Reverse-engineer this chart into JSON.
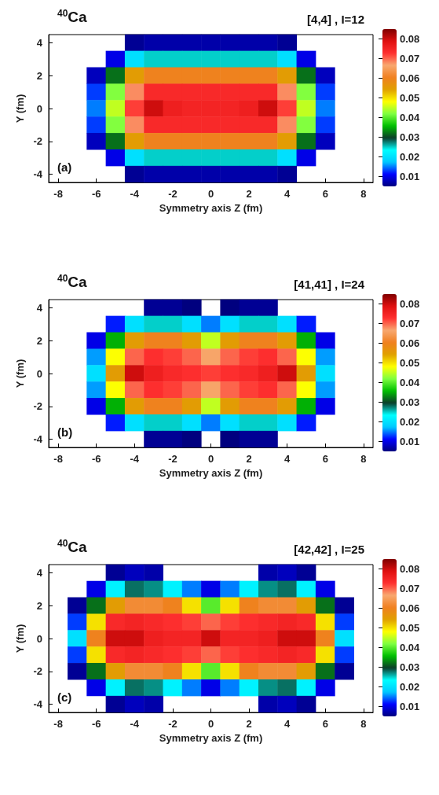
{
  "chart_data": [
    {
      "type": "heatmap",
      "title": "$^{40}$Ca",
      "subtitle": "[4,4] , I=12",
      "xlabel": "Symmetry axis Z (fm)",
      "ylabel": "Y (fm)",
      "annotations": [
        "(a)"
      ],
      "clim": [
        0.005,
        0.085
      ],
      "cticks": [
        0.01,
        0.02,
        0.03,
        0.04,
        0.05,
        0.06,
        0.07,
        0.08
      ],
      "grid": false,
      "categories": [
        "-8",
        null,
        "-6",
        null,
        "-4",
        null,
        "-2",
        null,
        "0",
        null,
        "2",
        null,
        "4",
        null,
        "6",
        null,
        "8"
      ],
      "y_categories": [
        "4",
        null,
        "2",
        null,
        "0",
        null,
        "-2",
        null,
        "-4"
      ],
      "cells": [
        [
          null,
          null,
          null,
          null,
          0.006,
          0.007,
          0.007,
          0.007,
          0.007,
          0.007,
          0.007,
          0.007,
          0.006,
          null,
          null,
          null,
          null
        ],
        [
          null,
          null,
          null,
          0.01,
          0.02,
          0.025,
          0.025,
          0.025,
          0.025,
          0.025,
          0.025,
          0.025,
          0.02,
          0.01,
          null,
          null,
          null
        ],
        [
          null,
          null,
          0.008,
          0.032,
          0.055,
          0.06,
          0.06,
          0.06,
          0.06,
          0.06,
          0.06,
          0.06,
          0.055,
          0.032,
          0.008,
          null,
          null
        ],
        [
          null,
          null,
          0.013,
          0.042,
          0.068,
          0.074,
          0.074,
          0.074,
          0.074,
          0.074,
          0.074,
          0.074,
          0.068,
          0.042,
          0.013,
          null,
          null
        ],
        [
          null,
          null,
          0.015,
          0.045,
          0.072,
          0.08,
          0.076,
          0.075,
          0.075,
          0.075,
          0.076,
          0.08,
          0.072,
          0.045,
          0.015,
          null,
          null
        ],
        [
          null,
          null,
          0.013,
          0.042,
          0.068,
          0.074,
          0.074,
          0.074,
          0.074,
          0.074,
          0.074,
          0.074,
          0.068,
          0.042,
          0.013,
          null,
          null
        ],
        [
          null,
          null,
          0.008,
          0.032,
          0.055,
          0.06,
          0.06,
          0.06,
          0.06,
          0.06,
          0.06,
          0.06,
          0.055,
          0.032,
          0.008,
          null,
          null
        ],
        [
          null,
          null,
          null,
          0.01,
          0.02,
          0.025,
          0.025,
          0.025,
          0.025,
          0.025,
          0.025,
          0.025,
          0.02,
          0.01,
          null,
          null,
          null
        ],
        [
          null,
          null,
          null,
          null,
          0.006,
          0.007,
          0.007,
          0.007,
          0.007,
          0.007,
          0.007,
          0.007,
          0.006,
          null,
          null,
          null,
          null
        ]
      ]
    },
    {
      "type": "heatmap",
      "title": "$^{40}$Ca",
      "subtitle": "[41,41] , I=24",
      "xlabel": "Symmetry axis Z (fm)",
      "ylabel": "Y (fm)",
      "annotations": [
        "(b)"
      ],
      "clim": [
        0.005,
        0.085
      ],
      "cticks": [
        0.01,
        0.02,
        0.03,
        0.04,
        0.05,
        0.06,
        0.07,
        0.08
      ],
      "grid": false,
      "categories": [
        "-8",
        null,
        "-6",
        null,
        "-4",
        null,
        "-2",
        null,
        "0",
        null,
        "2",
        null,
        "4",
        null,
        "6",
        null,
        "8"
      ],
      "y_categories": [
        "4",
        null,
        "2",
        null,
        "0",
        null,
        "-2",
        null,
        "-4"
      ],
      "cells": [
        [
          null,
          null,
          null,
          null,
          null,
          0.006,
          0.006,
          0.005,
          null,
          0.005,
          0.006,
          0.006,
          null,
          null,
          null,
          null,
          null
        ],
        [
          null,
          null,
          null,
          0.012,
          0.02,
          0.025,
          0.025,
          0.02,
          0.015,
          0.02,
          0.025,
          0.025,
          0.02,
          0.012,
          null,
          null,
          null
        ],
        [
          null,
          null,
          0.01,
          0.035,
          0.055,
          0.06,
          0.06,
          0.055,
          0.045,
          0.055,
          0.06,
          0.06,
          0.055,
          0.035,
          0.01,
          null,
          null
        ],
        [
          null,
          null,
          0.016,
          0.048,
          0.07,
          0.073,
          0.072,
          0.07,
          0.066,
          0.07,
          0.072,
          0.073,
          0.07,
          0.048,
          0.016,
          null,
          null
        ],
        [
          null,
          null,
          0.02,
          0.055,
          0.08,
          0.076,
          0.074,
          0.073,
          0.072,
          0.073,
          0.074,
          0.076,
          0.08,
          0.055,
          0.02,
          null,
          null
        ],
        [
          null,
          null,
          0.016,
          0.048,
          0.07,
          0.073,
          0.072,
          0.07,
          0.066,
          0.07,
          0.072,
          0.073,
          0.07,
          0.048,
          0.016,
          null,
          null
        ],
        [
          null,
          null,
          0.01,
          0.035,
          0.055,
          0.06,
          0.06,
          0.055,
          0.045,
          0.055,
          0.06,
          0.06,
          0.055,
          0.035,
          0.01,
          null,
          null
        ],
        [
          null,
          null,
          null,
          0.012,
          0.02,
          0.025,
          0.025,
          0.02,
          0.015,
          0.02,
          0.025,
          0.025,
          0.02,
          0.012,
          null,
          null,
          null
        ],
        [
          null,
          null,
          null,
          null,
          null,
          0.006,
          0.006,
          0.005,
          null,
          0.005,
          0.006,
          0.006,
          null,
          null,
          null,
          null,
          null
        ]
      ]
    },
    {
      "type": "heatmap",
      "title": "$^{40}$Ca",
      "subtitle": "[42,42] , I=25",
      "xlabel": "Symmetry axis Z (fm)",
      "ylabel": "Y (fm)",
      "annotations": [
        "(c)"
      ],
      "clim": [
        0.005,
        0.085
      ],
      "cticks": [
        0.01,
        0.02,
        0.03,
        0.04,
        0.05,
        0.06,
        0.07,
        0.08
      ],
      "grid": false,
      "categories": [
        "-8",
        null,
        "-6",
        null,
        "-4",
        null,
        "-2",
        null,
        "0",
        null,
        "2",
        null,
        "4",
        null,
        "6",
        null,
        "8"
      ],
      "y_categories": [
        "4",
        null,
        "2",
        null,
        "0",
        null,
        "-2",
        null,
        "-4"
      ],
      "cells": [
        [
          null,
          null,
          null,
          0.006,
          0.008,
          0.007,
          null,
          null,
          null,
          null,
          null,
          0.007,
          0.008,
          0.006,
          null,
          null,
          null
        ],
        [
          null,
          null,
          0.01,
          0.022,
          0.028,
          0.027,
          0.022,
          0.015,
          0.01,
          0.015,
          0.022,
          0.027,
          0.028,
          0.022,
          0.01,
          null,
          null
        ],
        [
          null,
          0.006,
          0.032,
          0.055,
          0.062,
          0.062,
          0.06,
          0.05,
          0.04,
          0.05,
          0.06,
          0.062,
          0.062,
          0.055,
          0.032,
          0.006,
          null
        ],
        [
          null,
          0.013,
          0.05,
          0.074,
          0.075,
          0.074,
          0.073,
          0.072,
          0.07,
          0.072,
          0.073,
          0.074,
          0.075,
          0.074,
          0.05,
          0.013,
          null
        ],
        [
          null,
          0.02,
          0.06,
          0.08,
          0.08,
          0.076,
          0.075,
          0.075,
          0.08,
          0.075,
          0.075,
          0.076,
          0.08,
          0.08,
          0.06,
          0.02,
          null
        ],
        [
          null,
          0.013,
          0.05,
          0.074,
          0.075,
          0.074,
          0.073,
          0.072,
          0.07,
          0.072,
          0.073,
          0.074,
          0.075,
          0.074,
          0.05,
          0.013,
          null
        ],
        [
          null,
          0.006,
          0.032,
          0.055,
          0.062,
          0.062,
          0.06,
          0.05,
          0.04,
          0.05,
          0.06,
          0.062,
          0.062,
          0.055,
          0.032,
          0.006,
          null
        ],
        [
          null,
          null,
          0.01,
          0.022,
          0.028,
          0.027,
          0.022,
          0.015,
          0.01,
          0.015,
          0.022,
          0.027,
          0.028,
          0.022,
          0.01,
          null,
          null
        ],
        [
          null,
          null,
          null,
          0.006,
          0.008,
          0.007,
          null,
          null,
          null,
          null,
          null,
          0.007,
          0.008,
          0.006,
          null,
          null,
          null
        ]
      ]
    }
  ]
}
